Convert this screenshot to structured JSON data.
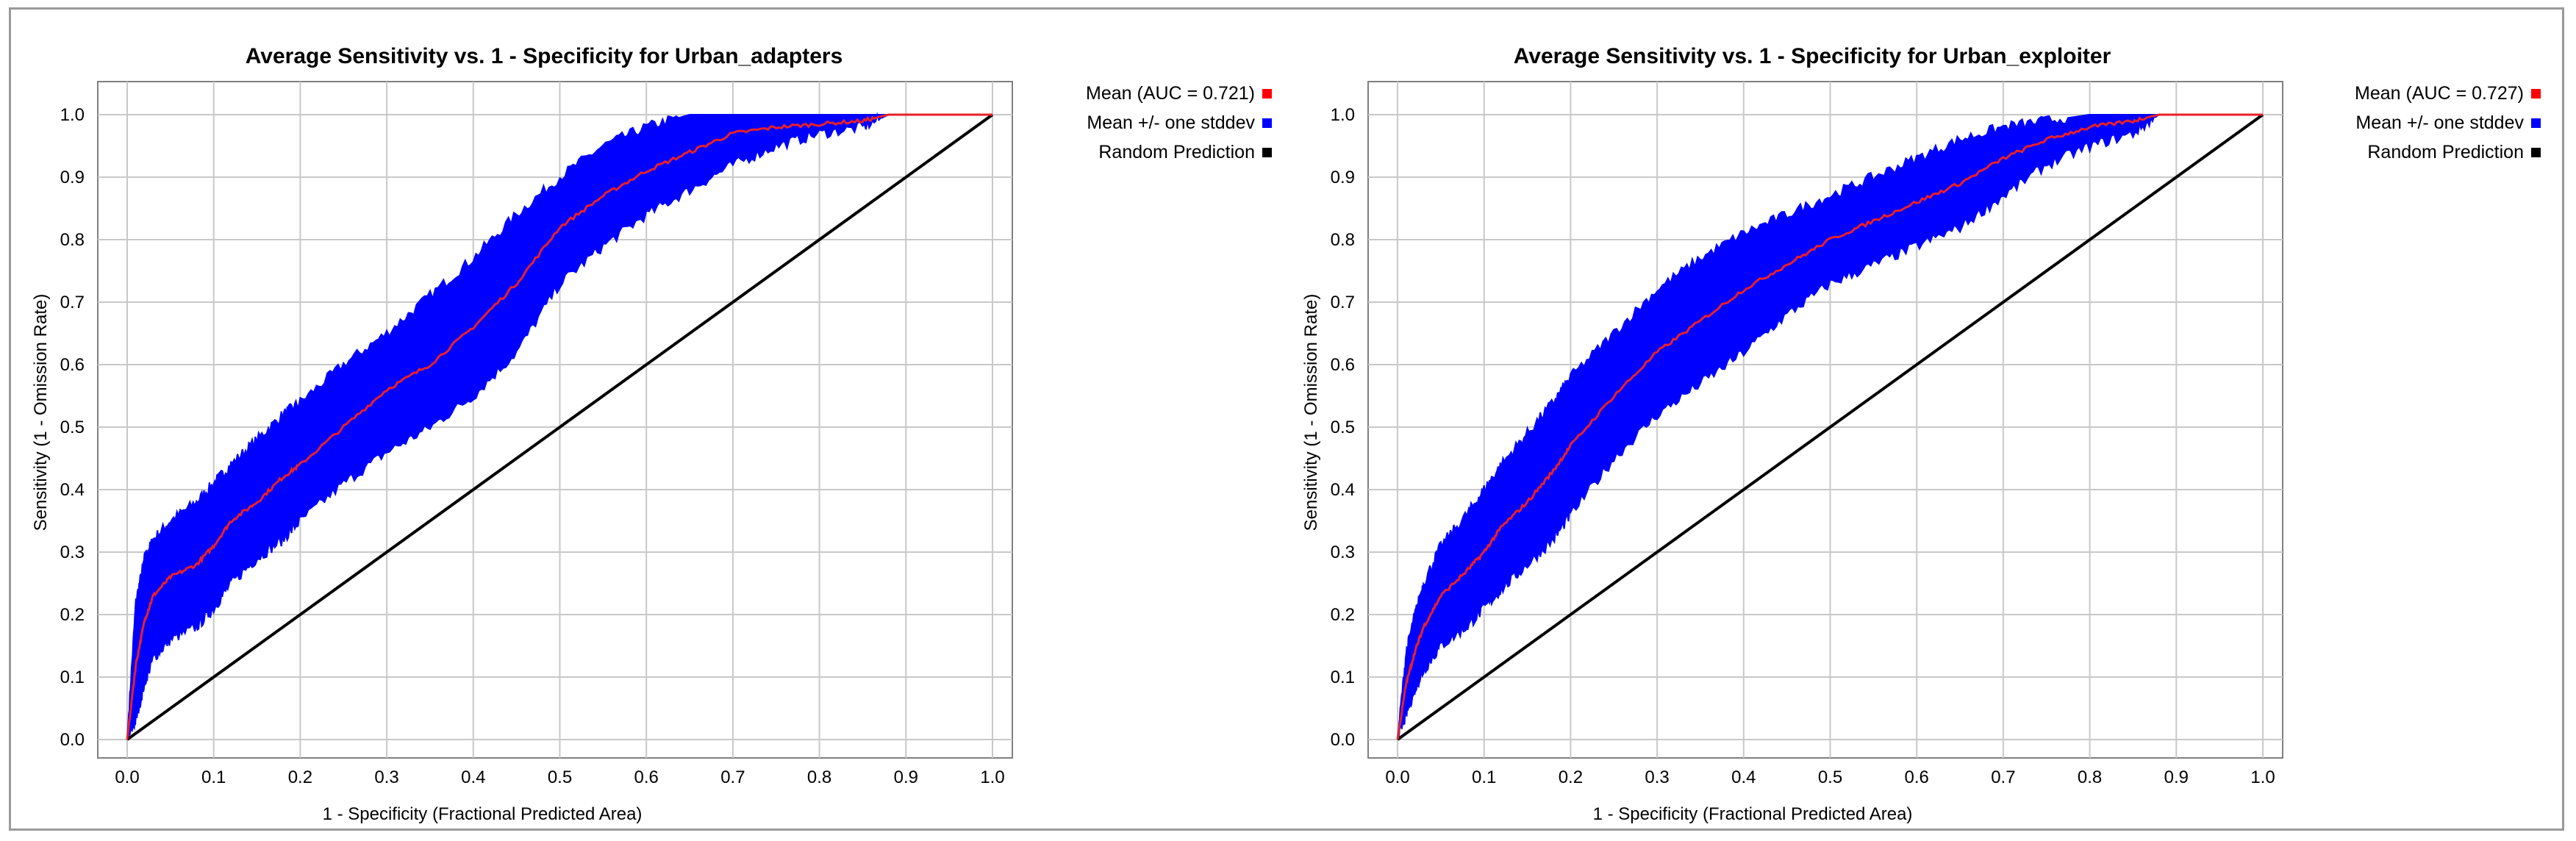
{
  "chart_data": [
    {
      "type": "line",
      "title": "Average Sensitivity vs. 1 - Specificity for Urban_adapters",
      "xlabel": "1 - Specificity (Fractional Predicted Area)",
      "ylabel": "Sensitivity (1 - Omission Rate)",
      "xlim": [
        0,
        1
      ],
      "ylim": [
        0,
        1
      ],
      "ticks": [
        "0.0",
        "0.1",
        "0.2",
        "0.3",
        "0.4",
        "0.5",
        "0.6",
        "0.7",
        "0.8",
        "0.9",
        "1.0"
      ],
      "grid": true,
      "legend_position": "right",
      "legend": [
        {
          "label": "Mean (AUC = 0.721)",
          "color": "#ff0000"
        },
        {
          "label": "Mean +/- one stddev",
          "color": "#0000ff"
        },
        {
          "label": "Random Prediction",
          "color": "#000000"
        }
      ],
      "series": [
        {
          "name": "Mean (AUC = 0.721)",
          "color": "#e8202a",
          "x": [
            0,
            0.01,
            0.02,
            0.03,
            0.05,
            0.08,
            0.1,
            0.12,
            0.15,
            0.18,
            0.2,
            0.25,
            0.3,
            0.35,
            0.4,
            0.45,
            0.5,
            0.55,
            0.6,
            0.65,
            0.7,
            0.75,
            0.8,
            0.85,
            0.88,
            0.9,
            1.0
          ],
          "y": [
            0,
            0.12,
            0.19,
            0.23,
            0.26,
            0.28,
            0.31,
            0.35,
            0.38,
            0.42,
            0.44,
            0.5,
            0.56,
            0.6,
            0.66,
            0.73,
            0.82,
            0.87,
            0.91,
            0.94,
            0.97,
            0.98,
            0.985,
            0.99,
            1.0,
            1.0,
            1.0
          ]
        },
        {
          "name": "Mean +/- one stddev (upper)",
          "color": "#0000ff",
          "x": [
            0,
            0.01,
            0.02,
            0.03,
            0.05,
            0.08,
            0.1,
            0.12,
            0.15,
            0.18,
            0.2,
            0.25,
            0.3,
            0.35,
            0.4,
            0.45,
            0.5,
            0.55,
            0.6,
            0.65,
            0.7,
            0.75,
            0.8,
            0.85,
            0.88,
            0.9,
            1.0
          ],
          "y": [
            0,
            0.22,
            0.29,
            0.32,
            0.35,
            0.38,
            0.41,
            0.44,
            0.48,
            0.52,
            0.54,
            0.6,
            0.65,
            0.71,
            0.77,
            0.84,
            0.9,
            0.95,
            0.98,
            1.0,
            1.0,
            1.0,
            1.0,
            1.0,
            1.0,
            1.0,
            1.0
          ]
        },
        {
          "name": "Mean +/- one stddev (lower)",
          "color": "#0000ff",
          "x": [
            0,
            0.01,
            0.02,
            0.03,
            0.05,
            0.08,
            0.1,
            0.12,
            0.15,
            0.18,
            0.2,
            0.25,
            0.3,
            0.35,
            0.4,
            0.45,
            0.5,
            0.55,
            0.6,
            0.65,
            0.7,
            0.75,
            0.8,
            0.85,
            0.88,
            0.9,
            1.0
          ],
          "y": [
            0,
            0.03,
            0.09,
            0.13,
            0.16,
            0.18,
            0.21,
            0.25,
            0.29,
            0.32,
            0.35,
            0.41,
            0.46,
            0.5,
            0.55,
            0.62,
            0.73,
            0.79,
            0.84,
            0.88,
            0.92,
            0.95,
            0.97,
            0.98,
            1.0,
            1.0,
            1.0
          ]
        },
        {
          "name": "Random Prediction",
          "color": "#000000",
          "x": [
            0,
            1
          ],
          "y": [
            0,
            1
          ]
        }
      ]
    },
    {
      "type": "line",
      "title": "Average Sensitivity vs. 1 - Specificity for Urban_exploiter",
      "xlabel": "1 - Specificity (Fractional Predicted Area)",
      "ylabel": "Sensitivity (1 - Omission Rate)",
      "xlim": [
        0,
        1
      ],
      "ylim": [
        0,
        1
      ],
      "ticks": [
        "0.0",
        "0.1",
        "0.2",
        "0.3",
        "0.4",
        "0.5",
        "0.6",
        "0.7",
        "0.8",
        "0.9",
        "1.0"
      ],
      "grid": true,
      "legend_position": "right",
      "legend": [
        {
          "label": "Mean (AUC = 0.727)",
          "color": "#ff0000"
        },
        {
          "label": "Mean +/- one stddev",
          "color": "#0000ff"
        },
        {
          "label": "Random Prediction",
          "color": "#000000"
        }
      ],
      "series": [
        {
          "name": "Mean (AUC = 0.727)",
          "color": "#e8202a",
          "x": [
            0,
            0.01,
            0.02,
            0.03,
            0.05,
            0.08,
            0.1,
            0.12,
            0.15,
            0.18,
            0.2,
            0.25,
            0.3,
            0.35,
            0.4,
            0.45,
            0.5,
            0.55,
            0.6,
            0.65,
            0.7,
            0.75,
            0.8,
            0.85,
            0.88,
            0.9,
            1.0
          ],
          "y": [
            0,
            0.09,
            0.14,
            0.18,
            0.23,
            0.27,
            0.3,
            0.34,
            0.38,
            0.43,
            0.47,
            0.55,
            0.62,
            0.67,
            0.72,
            0.76,
            0.8,
            0.83,
            0.86,
            0.89,
            0.93,
            0.96,
            0.98,
            0.99,
            1.0,
            1.0,
            1.0
          ]
        },
        {
          "name": "Mean +/- one stddev (upper)",
          "color": "#0000ff",
          "x": [
            0,
            0.01,
            0.02,
            0.03,
            0.05,
            0.08,
            0.1,
            0.12,
            0.15,
            0.18,
            0.2,
            0.25,
            0.3,
            0.35,
            0.4,
            0.45,
            0.5,
            0.55,
            0.6,
            0.65,
            0.7,
            0.75,
            0.8,
            0.85,
            0.88,
            0.9,
            1.0
          ],
          "y": [
            0,
            0.14,
            0.2,
            0.25,
            0.31,
            0.36,
            0.4,
            0.44,
            0.49,
            0.54,
            0.58,
            0.65,
            0.72,
            0.77,
            0.81,
            0.84,
            0.87,
            0.9,
            0.93,
            0.96,
            0.98,
            0.99,
            1.0,
            1.0,
            1.0,
            1.0,
            1.0
          ]
        },
        {
          "name": "Mean +/- one stddev (lower)",
          "color": "#0000ff",
          "x": [
            0,
            0.01,
            0.02,
            0.03,
            0.05,
            0.08,
            0.1,
            0.12,
            0.15,
            0.18,
            0.2,
            0.25,
            0.3,
            0.35,
            0.4,
            0.45,
            0.5,
            0.55,
            0.6,
            0.65,
            0.7,
            0.75,
            0.8,
            0.85,
            0.88,
            0.9,
            1.0
          ],
          "y": [
            0,
            0.04,
            0.08,
            0.11,
            0.15,
            0.18,
            0.21,
            0.24,
            0.28,
            0.32,
            0.36,
            0.45,
            0.52,
            0.57,
            0.62,
            0.68,
            0.73,
            0.76,
            0.79,
            0.82,
            0.87,
            0.92,
            0.95,
            0.97,
            1.0,
            1.0,
            1.0
          ]
        },
        {
          "name": "Random Prediction",
          "color": "#000000",
          "x": [
            0,
            1
          ],
          "y": [
            0,
            1
          ]
        }
      ]
    }
  ]
}
